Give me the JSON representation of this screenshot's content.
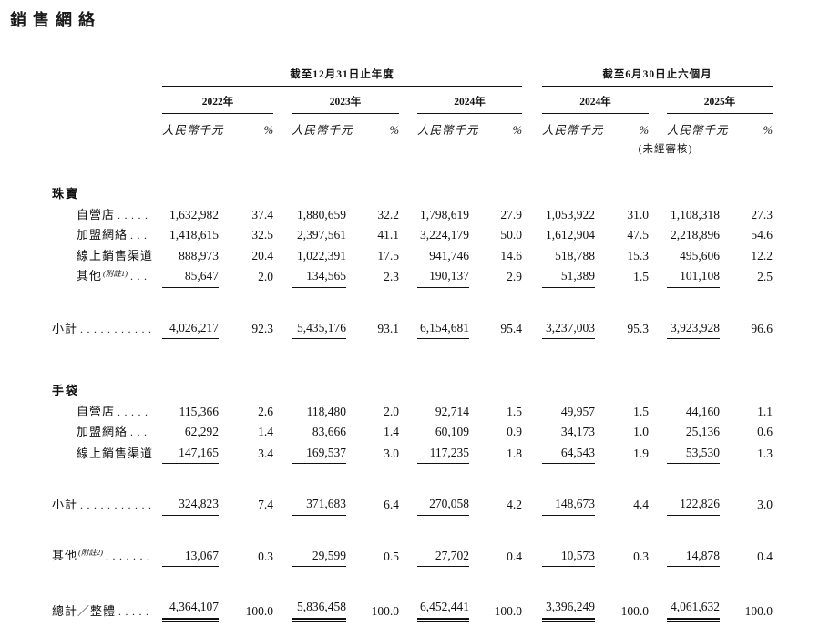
{
  "page": {
    "title": "銷售網絡"
  },
  "table": {
    "group_headers": {
      "annual": "截至12月31日止年度",
      "interim": "截至6月30日止六個月"
    },
    "years": [
      "2022年",
      "2023年",
      "2024年",
      "2024年",
      "2025年"
    ],
    "money_header": "人民幣千元",
    "pct_header": "%",
    "unaudited": "(未經審核)",
    "leader_dots": "......................................",
    "rows": [
      {
        "type": "section",
        "label": "珠寶"
      },
      {
        "type": "item",
        "label": "自營店",
        "values": [
          "1,632,982",
          "37.4",
          "1,880,659",
          "32.2",
          "1,798,619",
          "27.9",
          "1,053,922",
          "31.0",
          "1,108,318",
          "27.3"
        ]
      },
      {
        "type": "item",
        "label": "加盟網絡",
        "values": [
          "1,418,615",
          "32.5",
          "2,397,561",
          "41.1",
          "3,224,179",
          "50.0",
          "1,612,904",
          "47.5",
          "2,218,896",
          "54.6"
        ]
      },
      {
        "type": "item",
        "label": "線上銷售渠道",
        "values": [
          "888,973",
          "20.4",
          "1,022,391",
          "17.5",
          "941,746",
          "14.6",
          "518,788",
          "15.3",
          "495,606",
          "12.2"
        ]
      },
      {
        "type": "item",
        "label": "其他",
        "note": "(附註1)",
        "underline": "single",
        "values": [
          "85,647",
          "2.0",
          "134,565",
          "2.3",
          "190,137",
          "2.9",
          "51,389",
          "1.5",
          "101,108",
          "2.5"
        ]
      },
      {
        "type": "subtotal",
        "label": "小計",
        "underline": "single",
        "values": [
          "4,026,217",
          "92.3",
          "5,435,176",
          "93.1",
          "6,154,681",
          "95.4",
          "3,237,003",
          "95.3",
          "3,923,928",
          "96.6"
        ]
      },
      {
        "type": "section",
        "label": "手袋"
      },
      {
        "type": "item",
        "label": "自營店",
        "values": [
          "115,366",
          "2.6",
          "118,480",
          "2.0",
          "92,714",
          "1.5",
          "49,957",
          "1.5",
          "44,160",
          "1.1"
        ]
      },
      {
        "type": "item",
        "label": "加盟網絡",
        "values": [
          "62,292",
          "1.4",
          "83,666",
          "1.4",
          "60,109",
          "0.9",
          "34,173",
          "1.0",
          "25,136",
          "0.6"
        ]
      },
      {
        "type": "item",
        "label": "線上銷售渠道",
        "underline": "single",
        "values": [
          "147,165",
          "3.4",
          "169,537",
          "3.0",
          "117,235",
          "1.8",
          "64,543",
          "1.9",
          "53,530",
          "1.3"
        ]
      },
      {
        "type": "subtotal",
        "label": "小計",
        "underline": "single",
        "values": [
          "324,823",
          "7.4",
          "371,683",
          "6.4",
          "270,058",
          "4.2",
          "148,673",
          "4.4",
          "122,826",
          "3.0"
        ]
      },
      {
        "type": "standalone",
        "label": "其他",
        "note": "(附註2)",
        "underline": "single",
        "values": [
          "13,067",
          "0.3",
          "29,599",
          "0.5",
          "27,702",
          "0.4",
          "10,573",
          "0.3",
          "14,878",
          "0.4"
        ]
      },
      {
        "type": "total",
        "label": "總計／整體",
        "underline": "double",
        "values": [
          "4,364,107",
          "100.0",
          "5,836,458",
          "100.0",
          "6,452,441",
          "100.0",
          "3,396,249",
          "100.0",
          "4,061,632",
          "100.0"
        ]
      }
    ]
  }
}
